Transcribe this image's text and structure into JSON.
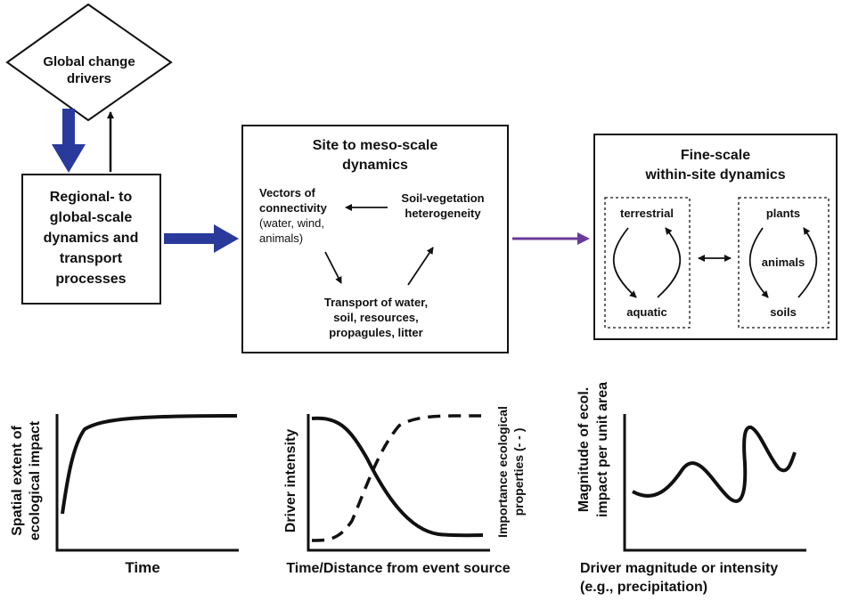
{
  "drivers": {
    "line1": "Global change",
    "line2": "drivers"
  },
  "regional": {
    "lines": [
      "Regional- to",
      "global-scale",
      "dynamics and",
      "transport",
      "processes"
    ]
  },
  "site": {
    "title_lines": [
      "Site to meso-scale",
      "dynamics"
    ],
    "vectors_lines": [
      "Vectors of",
      "connectivity",
      "(water, wind,",
      "animals)"
    ],
    "soil_veg_lines": [
      "Soil-vegetation",
      "heterogeneity"
    ],
    "transport_lines": [
      "Transport of water,",
      "soil, resources,",
      "propagules, litter"
    ]
  },
  "fine": {
    "title_lines": [
      "Fine-scale",
      "within-site dynamics"
    ],
    "terrestrial": "terrestrial",
    "aquatic": "aquatic",
    "plants": "plants",
    "animals": "animals",
    "soils": "soils"
  },
  "graph1": {
    "y_lines": [
      "Spatial extent of",
      "ecological impact"
    ],
    "x_label": "Time"
  },
  "graph2": {
    "y_label": "Driver intensity",
    "y2_lines": [
      "Importance ecological",
      "properties (- - )"
    ],
    "x_label": "Time/Distance from event source"
  },
  "graph3": {
    "y_lines": [
      "Magnitude of ecol.",
      "impact per unit area"
    ],
    "x_lines": [
      "Driver magnitude or intensity",
      "(e.g., precipitation)"
    ]
  },
  "colors": {
    "thick_arrow": "#2a3a9c",
    "purple_arrow": "#6a3a9a",
    "line": "#111111"
  }
}
